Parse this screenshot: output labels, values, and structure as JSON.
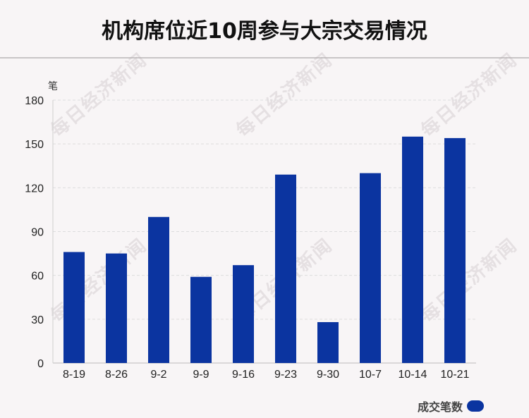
{
  "header": {
    "title": "机构席位近10周参与大宗交易情况"
  },
  "watermark": "每日经济新闻",
  "legend": {
    "label": "成交笔数"
  },
  "colors": {
    "bar": "#0b34a0",
    "grid": "#dddddd",
    "axis": "#cfcfcf"
  },
  "chart_data": {
    "type": "bar",
    "categories": [
      "8-19",
      "8-26",
      "9-2",
      "9-9",
      "9-16",
      "9-23",
      "9-30",
      "10-7",
      "10-14",
      "10-21"
    ],
    "series": [
      {
        "name": "成交笔数",
        "values": [
          76,
          75,
          100,
          59,
          67,
          129,
          28,
          130,
          155,
          154
        ]
      }
    ],
    "ylabel": "笔",
    "ylim": [
      0,
      180
    ],
    "yticks": [
      0,
      30,
      60,
      90,
      120,
      150,
      180
    ],
    "grid": true,
    "legend_position": "bottom-right"
  }
}
